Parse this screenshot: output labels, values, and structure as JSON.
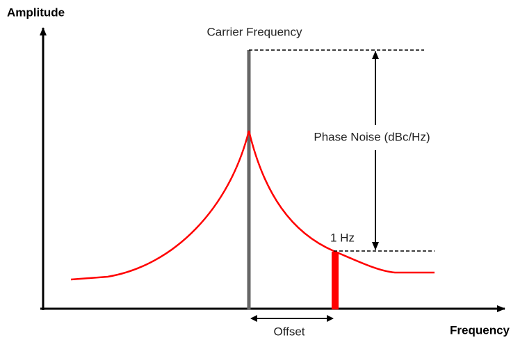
{
  "axes": {
    "y_label": "Amplitude",
    "x_label": "Frequency"
  },
  "annotations": {
    "carrier": "Carrier Frequency",
    "phase_noise": "Phase Noise (dBc/Hz)",
    "bandwidth": "1 Hz",
    "offset": "Offset"
  }
}
